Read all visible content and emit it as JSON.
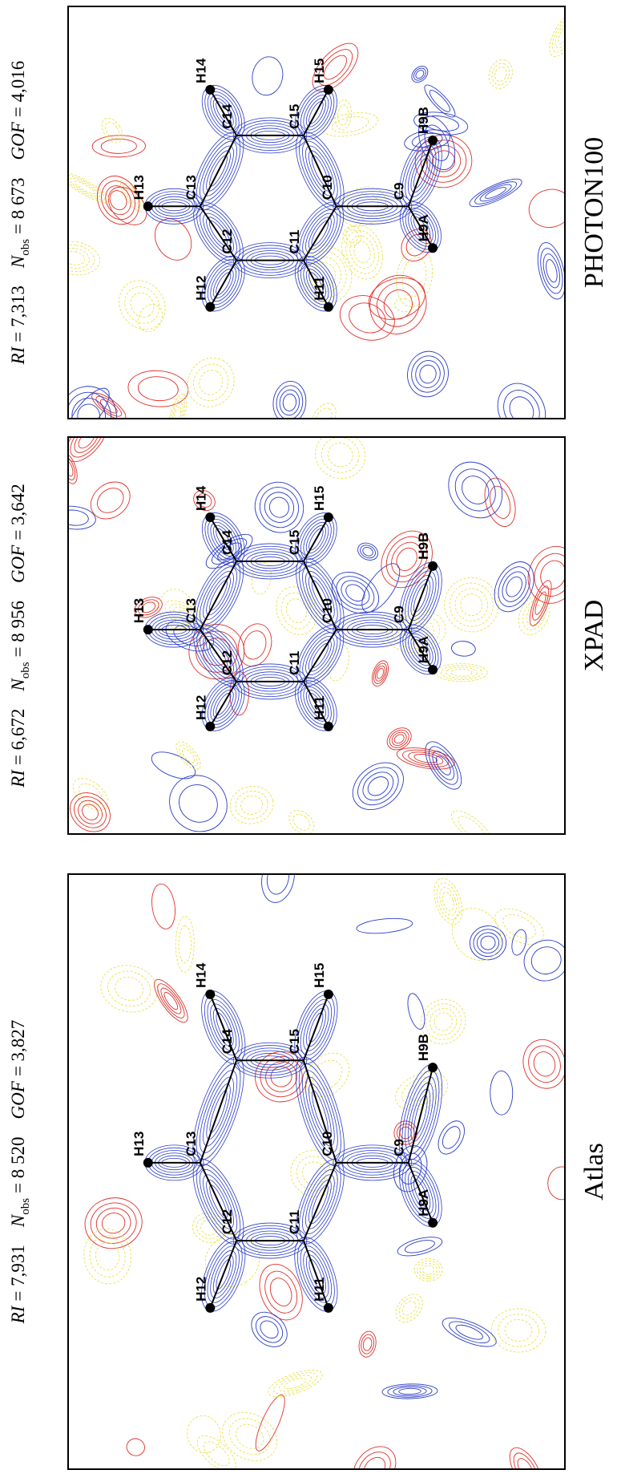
{
  "atoms": [
    "C9",
    "C10",
    "C11",
    "C12",
    "C13",
    "C14",
    "C15",
    "H9A",
    "H9B",
    "H11",
    "H12",
    "H13",
    "H14",
    "H15"
  ],
  "panels": [
    {
      "title": "Atlas",
      "stats": [
        {
          "symbol": "RI",
          "value": "= 7,931"
        },
        {
          "symbol": "N",
          "subscript": "obs",
          "value": "= 8 520"
        },
        {
          "symbol": "GOF",
          "value": "= 3,827"
        }
      ]
    },
    {
      "title": "XPAD",
      "stats": [
        {
          "symbol": "RI",
          "value": "= 6,672"
        },
        {
          "symbol": "N",
          "subscript": "obs",
          "value": "= 8 956"
        },
        {
          "symbol": "GOF",
          "value": "= 3,642"
        }
      ]
    },
    {
      "title": "PHOTON100",
      "stats": [
        {
          "symbol": "RI",
          "value": "= 7,313"
        },
        {
          "symbol": "N",
          "subscript": "obs",
          "value": "= 8 673"
        },
        {
          "symbol": "GOF",
          "value": "= 4,016"
        }
      ]
    }
  ]
}
